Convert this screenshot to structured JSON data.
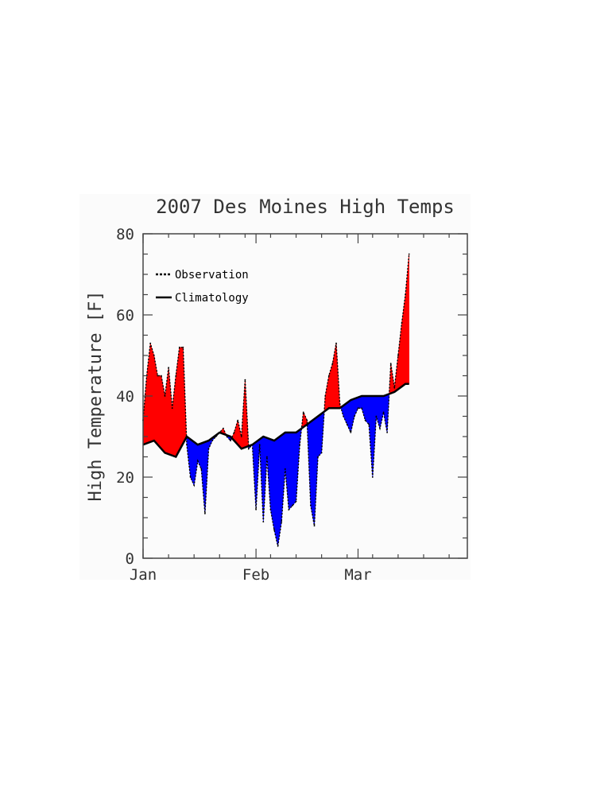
{
  "chart_data": {
    "type": "area",
    "title": "2007 Des Moines High Temps",
    "xlabel": "",
    "ylabel": "High Temperature [F]",
    "ylim": [
      0,
      80
    ],
    "xlim": [
      "2007-01-01",
      "2007-03-31"
    ],
    "yticks": [
      0,
      20,
      40,
      60,
      80
    ],
    "xticks": [
      {
        "date": "2007-01-01",
        "label": "Jan"
      },
      {
        "date": "2007-02-01",
        "label": "Feb"
      },
      {
        "date": "2007-03-01",
        "label": "Mar"
      }
    ],
    "legend": {
      "position": "top-left",
      "entries": [
        "Observation",
        "Climatology"
      ]
    },
    "fill_colors": {
      "above": "#ff0000",
      "below": "#0000ff"
    },
    "series": [
      {
        "name": "Observation",
        "style": "dotted",
        "x": [
          "2007-01-01",
          "2007-01-02",
          "2007-01-03",
          "2007-01-04",
          "2007-01-05",
          "2007-01-06",
          "2007-01-07",
          "2007-01-08",
          "2007-01-09",
          "2007-01-10",
          "2007-01-11",
          "2007-01-12",
          "2007-01-13",
          "2007-01-14",
          "2007-01-15",
          "2007-01-16",
          "2007-01-17",
          "2007-01-18",
          "2007-01-19",
          "2007-01-20",
          "2007-01-21",
          "2007-01-22",
          "2007-01-23",
          "2007-01-24",
          "2007-01-25",
          "2007-01-26",
          "2007-01-27",
          "2007-01-28",
          "2007-01-29",
          "2007-01-30",
          "2007-01-31",
          "2007-02-01",
          "2007-02-02",
          "2007-02-03",
          "2007-02-04",
          "2007-02-05",
          "2007-02-06",
          "2007-02-07",
          "2007-02-08",
          "2007-02-09",
          "2007-02-10",
          "2007-02-11",
          "2007-02-12",
          "2007-02-13",
          "2007-02-14",
          "2007-02-15",
          "2007-02-16",
          "2007-02-17",
          "2007-02-18",
          "2007-02-19",
          "2007-02-20",
          "2007-02-21",
          "2007-02-22",
          "2007-02-23",
          "2007-02-24",
          "2007-02-25",
          "2007-02-26",
          "2007-02-27",
          "2007-02-28",
          "2007-03-01",
          "2007-03-02",
          "2007-03-03",
          "2007-03-04",
          "2007-03-05",
          "2007-03-06",
          "2007-03-07",
          "2007-03-08",
          "2007-03-09",
          "2007-03-10",
          "2007-03-11",
          "2007-03-12",
          "2007-03-13",
          "2007-03-14",
          "2007-03-15"
        ],
        "values": [
          34,
          45,
          53,
          50,
          45,
          45,
          40,
          47,
          37,
          45,
          52,
          52,
          28,
          20,
          18,
          24,
          22,
          11,
          27,
          29,
          30,
          31,
          32,
          30,
          29,
          31,
          34,
          30,
          44,
          27,
          28,
          12,
          28,
          9,
          25,
          12,
          7,
          3,
          9,
          22,
          12,
          13,
          14,
          28,
          36,
          34,
          13,
          8,
          25,
          26,
          40,
          45,
          48,
          53,
          38,
          35,
          33,
          31,
          35,
          37,
          37,
          34,
          33,
          20,
          35,
          32,
          36,
          31,
          48,
          42,
          50,
          58,
          65,
          75
        ]
      },
      {
        "name": "Climatology",
        "style": "solid",
        "x": [
          "2007-01-01",
          "2007-01-04",
          "2007-01-07",
          "2007-01-10",
          "2007-01-13",
          "2007-01-16",
          "2007-01-19",
          "2007-01-22",
          "2007-01-25",
          "2007-01-28",
          "2007-01-31",
          "2007-02-03",
          "2007-02-06",
          "2007-02-09",
          "2007-02-12",
          "2007-02-15",
          "2007-02-18",
          "2007-02-21",
          "2007-02-24",
          "2007-02-27",
          "2007-03-02",
          "2007-03-05",
          "2007-03-08",
          "2007-03-11",
          "2007-03-14",
          "2007-03-15"
        ],
        "values": [
          28,
          29,
          26,
          25,
          30,
          28,
          29,
          31,
          30,
          27,
          28,
          30,
          29,
          31,
          31,
          33,
          35,
          37,
          37,
          39,
          40,
          40,
          40,
          41,
          43,
          43
        ]
      }
    ]
  }
}
